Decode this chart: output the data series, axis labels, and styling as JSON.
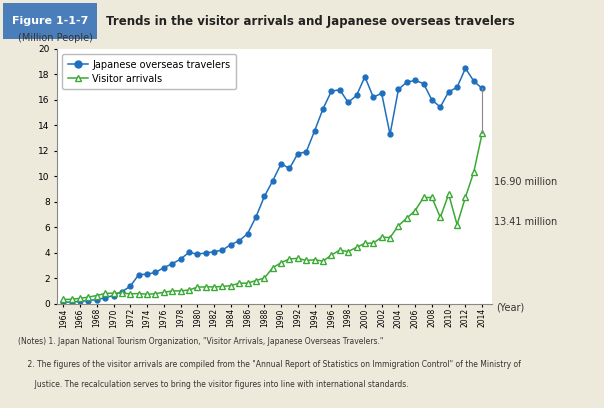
{
  "title_box": "Figure 1-1-7",
  "title_text": "Trends in the visitor arrivals and Japanese overseas travelers",
  "ylabel": "(Million People)",
  "xlabel": "(Year)",
  "ylim": [
    0,
    20
  ],
  "yticks": [
    0,
    2,
    4,
    6,
    8,
    10,
    12,
    14,
    16,
    18,
    20
  ],
  "bg_outer": "#eeeadb",
  "bg_plot_area": "#faf8ef",
  "bg_inner": "#ffffff",
  "bg_title_bar": "#cce0f0",
  "bg_title_box": "#4a7ebb",
  "annotation1": "16.90 million",
  "annotation2": "13.41 million",
  "japanese_travelers": {
    "years": [
      1964,
      1965,
      1966,
      1967,
      1968,
      1969,
      1970,
      1971,
      1972,
      1973,
      1974,
      1975,
      1976,
      1977,
      1978,
      1979,
      1980,
      1981,
      1982,
      1983,
      1984,
      1985,
      1986,
      1987,
      1988,
      1989,
      1990,
      1991,
      1992,
      1993,
      1994,
      1995,
      1996,
      1997,
      1998,
      1999,
      2000,
      2001,
      2002,
      2003,
      2004,
      2005,
      2006,
      2007,
      2008,
      2009,
      2010,
      2011,
      2012,
      2013,
      2014
    ],
    "values": [
      0.13,
      0.16,
      0.2,
      0.27,
      0.34,
      0.49,
      0.66,
      0.96,
      1.39,
      2.29,
      2.34,
      2.47,
      2.85,
      3.15,
      3.52,
      4.04,
      3.91,
      4.0,
      4.09,
      4.23,
      4.66,
      4.95,
      5.52,
      6.83,
      8.43,
      9.66,
      10.99,
      10.63,
      11.79,
      11.93,
      13.58,
      15.3,
      16.69,
      16.8,
      15.81,
      16.35,
      17.82,
      16.22,
      16.52,
      13.3,
      16.83,
      17.4,
      17.53,
      17.29,
      15.99,
      15.45,
      16.64,
      16.99,
      18.49,
      17.47,
      16.9
    ],
    "color": "#1e6fbe",
    "marker": "o",
    "label": "Japanese overseas travelers"
  },
  "visitor_arrivals": {
    "years": [
      1964,
      1965,
      1966,
      1967,
      1968,
      1969,
      1970,
      1971,
      1972,
      1973,
      1974,
      1975,
      1976,
      1977,
      1978,
      1979,
      1980,
      1981,
      1982,
      1983,
      1984,
      1985,
      1986,
      1987,
      1988,
      1989,
      1990,
      1991,
      1992,
      1993,
      1994,
      1995,
      1996,
      1997,
      1998,
      1999,
      2000,
      2001,
      2002,
      2003,
      2004,
      2005,
      2006,
      2007,
      2008,
      2009,
      2010,
      2011,
      2012,
      2013,
      2014
    ],
    "values": [
      0.35,
      0.37,
      0.44,
      0.54,
      0.66,
      0.83,
      0.85,
      0.86,
      0.79,
      0.82,
      0.76,
      0.81,
      0.91,
      1.02,
      1.03,
      1.09,
      1.32,
      1.34,
      1.34,
      1.37,
      1.44,
      1.63,
      1.63,
      1.84,
      2.03,
      2.84,
      3.24,
      3.53,
      3.58,
      3.41,
      3.47,
      3.35,
      3.84,
      4.22,
      4.11,
      4.44,
      4.76,
      4.77,
      5.24,
      5.21,
      6.14,
      6.73,
      7.33,
      8.35,
      8.35,
      6.79,
      8.61,
      6.22,
      8.37,
      10.36,
      13.41
    ],
    "color": "#3aaa35",
    "marker": "^",
    "label": "Visitor arrivals"
  },
  "notes_line1": "(Notes) 1. Japan National Tourism Organization, \"Visitor Arrivals, Japanese Overseas Travelers.\"",
  "notes_line2": "    2. The figures of the visitor arrivals are compiled from the \"Annual Report of Statistics on Immigration Control\" of the Ministry of",
  "notes_line3": "       Justice. The recalculation serves to bring the visitor figures into line with international standards."
}
